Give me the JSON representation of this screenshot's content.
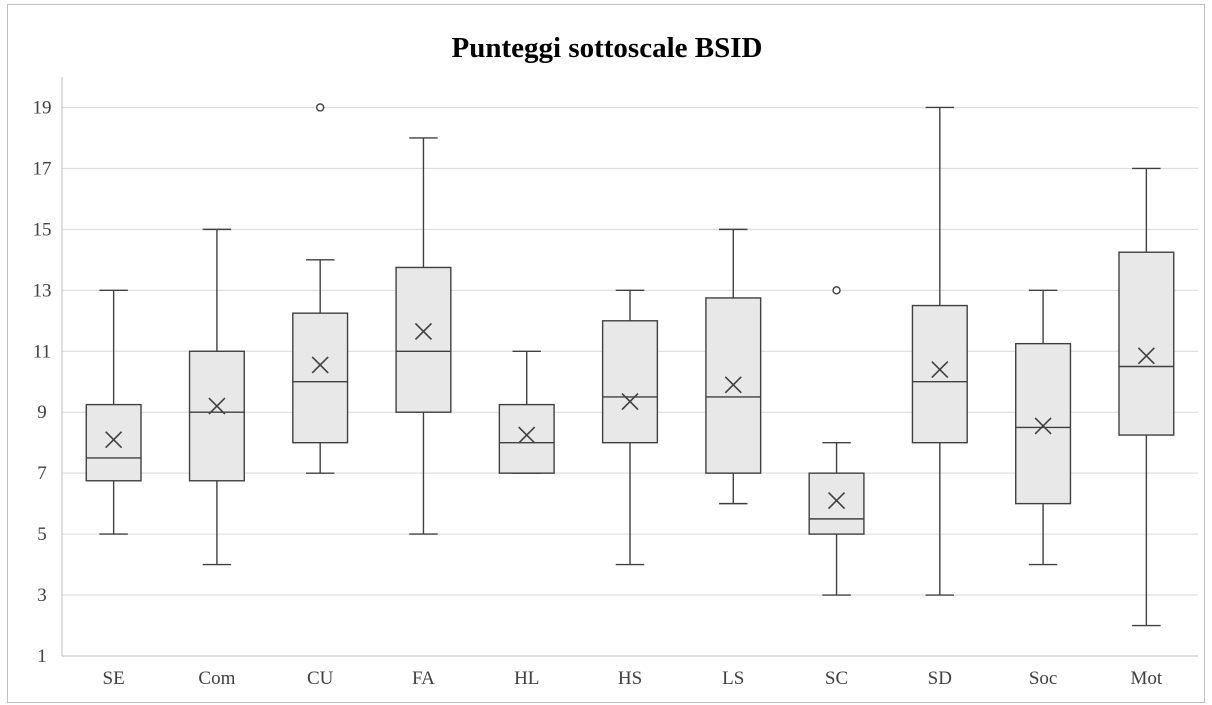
{
  "chart_data": {
    "type": "boxplot",
    "title": "Punteggi sottoscale BSID",
    "xlabel": "",
    "ylabel": "",
    "ylim": [
      1,
      20
    ],
    "yticks": [
      1,
      3,
      5,
      7,
      9,
      11,
      13,
      15,
      17,
      19
    ],
    "grid": true,
    "categories": [
      "SE",
      "Com",
      "CU",
      "FA",
      "HL",
      "HS",
      "LS",
      "SC",
      "SD",
      "Soc",
      "Mot"
    ],
    "boxes": [
      {
        "category": "SE",
        "min": 5,
        "q1": 6.75,
        "median": 7.5,
        "q3": 9.25,
        "max": 13,
        "mean": 8.1,
        "outliers": []
      },
      {
        "category": "Com",
        "min": 4,
        "q1": 6.75,
        "median": 9,
        "q3": 11,
        "max": 15,
        "mean": 9.2,
        "outliers": []
      },
      {
        "category": "CU",
        "min": 7,
        "q1": 8,
        "median": 10,
        "q3": 12.25,
        "max": 14,
        "mean": 10.55,
        "outliers": [
          19
        ]
      },
      {
        "category": "FA",
        "min": 5,
        "q1": 9,
        "median": 11,
        "q3": 13.75,
        "max": 18,
        "mean": 11.65,
        "outliers": []
      },
      {
        "category": "HL",
        "min": 7,
        "q1": 7,
        "median": 8,
        "q3": 9.25,
        "max": 11,
        "mean": 8.25,
        "outliers": []
      },
      {
        "category": "HS",
        "min": 4,
        "q1": 8,
        "median": 9.5,
        "q3": 12,
        "max": 13,
        "mean": 9.35,
        "outliers": []
      },
      {
        "category": "LS",
        "min": 6,
        "q1": 7,
        "median": 9.5,
        "q3": 12.75,
        "max": 15,
        "mean": 9.9,
        "outliers": []
      },
      {
        "category": "SC",
        "min": 3,
        "q1": 5,
        "median": 5.5,
        "q3": 7,
        "max": 8,
        "mean": 6.1,
        "outliers": [
          13
        ]
      },
      {
        "category": "SD",
        "min": 3,
        "q1": 8,
        "median": 10,
        "q3": 12.5,
        "max": 19,
        "mean": 10.4,
        "outliers": []
      },
      {
        "category": "Soc",
        "min": 4,
        "q1": 6,
        "median": 8.5,
        "q3": 11.25,
        "max": 13,
        "mean": 8.55,
        "outliers": []
      },
      {
        "category": "Mot",
        "min": 2,
        "q1": 8.25,
        "median": 10.5,
        "q3": 14.25,
        "max": 17,
        "mean": 10.85,
        "outliers": []
      }
    ],
    "colors": {
      "box_fill": "#e8e8e8",
      "box_stroke": "#404040",
      "gridline": "#d9d9d9",
      "axis": "#bfbfbf"
    }
  }
}
